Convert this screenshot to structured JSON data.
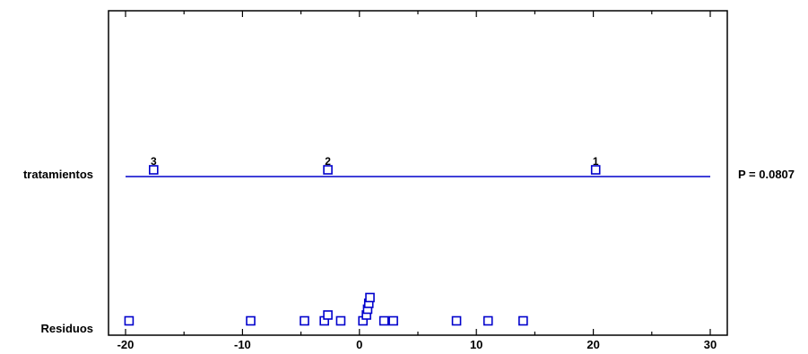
{
  "chart_data": {
    "type": "scatter",
    "title": "",
    "xlabel": "",
    "ylabel": "",
    "xlim": [
      -20,
      30
    ],
    "x_ticks": [
      "-20",
      "-10",
      "0",
      "10",
      "20",
      "30"
    ],
    "row_labels": {
      "treatments": "tratamientos",
      "residuals": "Residuos"
    },
    "p_value_label": "P = 0.0807",
    "treatment_points": [
      {
        "label": "3",
        "x": -17.6
      },
      {
        "label": "2",
        "x": -2.7
      },
      {
        "label": "1",
        "x": 20.2
      }
    ],
    "residual_points": [
      {
        "x": -19.7,
        "stack": 0
      },
      {
        "x": -9.3,
        "stack": 0
      },
      {
        "x": -4.7,
        "stack": 0
      },
      {
        "x": -3.0,
        "stack": 0
      },
      {
        "x": -2.7,
        "stack": 1
      },
      {
        "x": -1.6,
        "stack": 0
      },
      {
        "x": 0.3,
        "stack": 0
      },
      {
        "x": 0.6,
        "stack": 1
      },
      {
        "x": 0.7,
        "stack": 2
      },
      {
        "x": 0.8,
        "stack": 3
      },
      {
        "x": 0.9,
        "stack": 4
      },
      {
        "x": 2.1,
        "stack": 0
      },
      {
        "x": 2.9,
        "stack": 0
      },
      {
        "x": 8.3,
        "stack": 0
      },
      {
        "x": 11.0,
        "stack": 0
      },
      {
        "x": 14.0,
        "stack": 0
      }
    ],
    "grid": false,
    "colors": {
      "marker": "#0000cc",
      "line": "#0000cc",
      "axis": "#000000"
    }
  }
}
